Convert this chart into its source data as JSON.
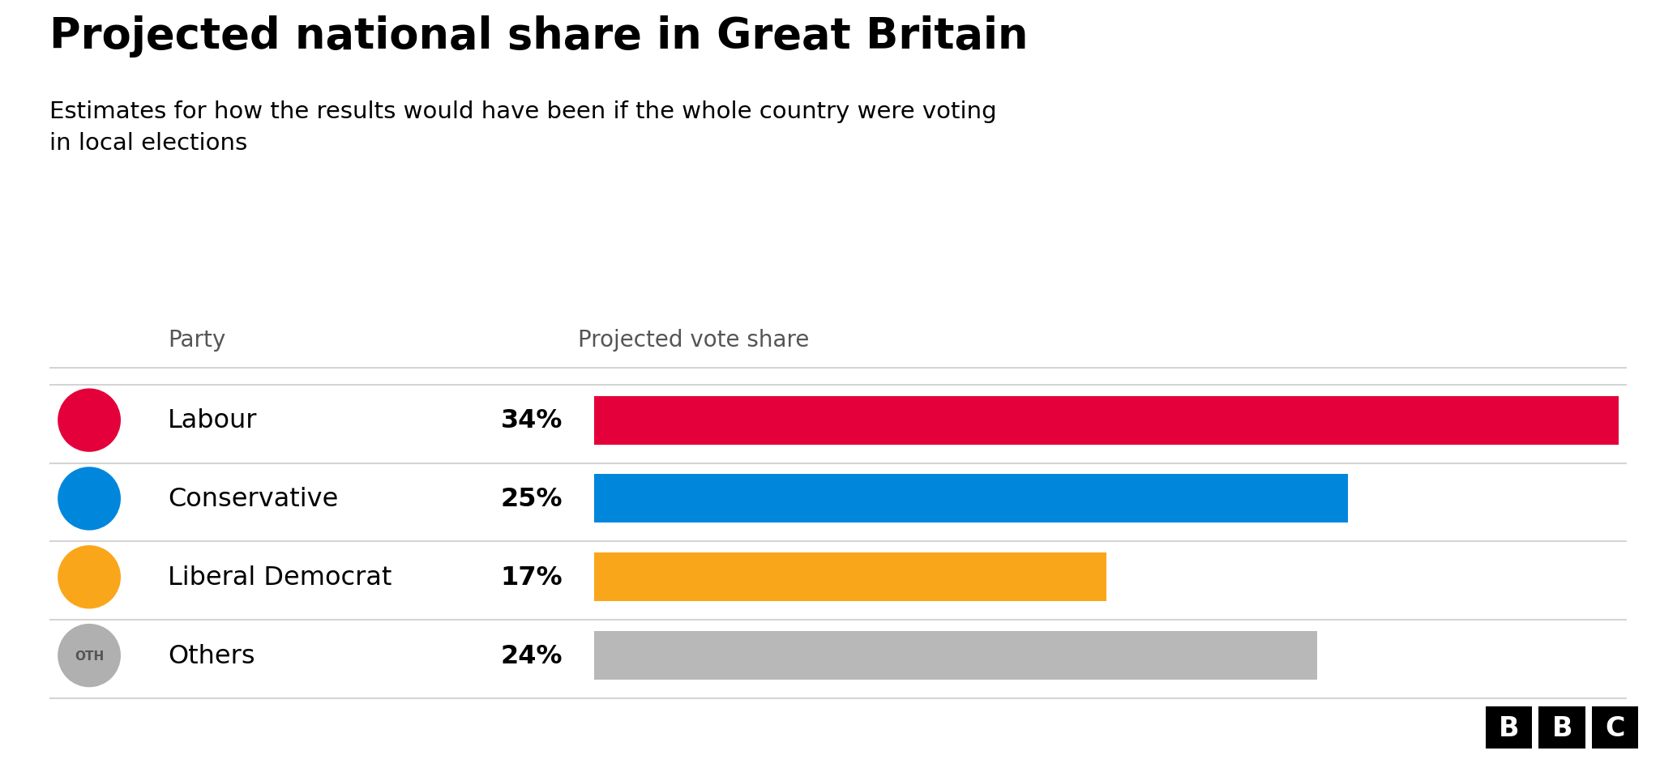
{
  "title": "Projected national share in Great Britain",
  "subtitle": "Estimates for how the results would have been if the whole country were voting\nin local elections",
  "col_party": "Party",
  "col_share": "Projected vote share",
  "parties": [
    "Labour",
    "Conservative",
    "Liberal Democrat",
    "Others"
  ],
  "values": [
    34,
    25,
    17,
    24
  ],
  "labels": [
    "34%",
    "25%",
    "17%",
    "24%"
  ],
  "bar_colors": [
    "#e4003b",
    "#0087dc",
    "#FAA61A",
    "#b8b8b8"
  ],
  "icon_bg_colors": [
    "#e4003b",
    "#0087dc",
    "#FAA61A",
    "#b0b0b0"
  ],
  "icon_labels": [
    "",
    "",
    "",
    "OTH"
  ],
  "max_value": 34,
  "background_color": "#ffffff",
  "title_fontsize": 38,
  "subtitle_fontsize": 21,
  "separator_color": "#cccccc",
  "header_color": "#555555",
  "header_fontsize": 20,
  "party_fontsize": 23,
  "pct_fontsize": 23,
  "bbc_fontsize": 24
}
